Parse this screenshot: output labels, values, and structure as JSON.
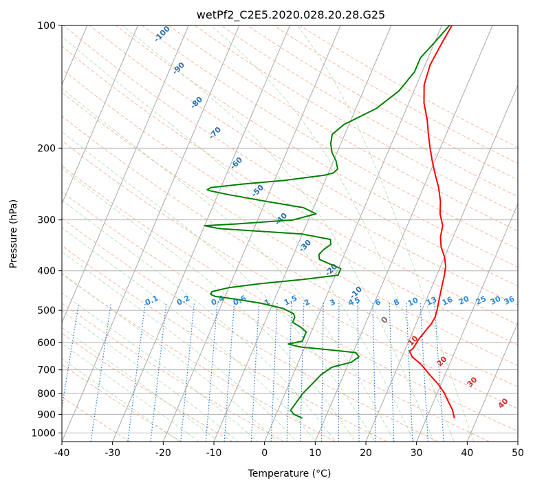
{
  "chart_data": {
    "type": "line",
    "title": "wetPf2_C2E5.2020.028.20.28.G25",
    "xlabel": "Temperature (°C)",
    "ylabel": "Pressure (hPa)",
    "xlim": [
      -40,
      50
    ],
    "ylim": [
      1050,
      100
    ],
    "y_scale": "log",
    "grid": true,
    "x_ticks": [
      "-40",
      "-30",
      "-20",
      "-10",
      "0",
      "10",
      "20",
      "30",
      "40",
      "50"
    ],
    "y_ticks": [
      "100",
      "200",
      "300",
      "400",
      "500",
      "600",
      "700",
      "800",
      "900",
      "1000"
    ],
    "series": [
      {
        "color": "#ff0000",
        "pressure": [
          100,
          110,
          125,
          140,
          155,
          170,
          185,
          200,
          215,
          230,
          250,
          270,
          290,
          310,
          330,
          350,
          370,
          390,
          410,
          440,
          470,
          500,
          520,
          540,
          560,
          590,
          620,
          630,
          650,
          680,
          720,
          760,
          800,
          840,
          880,
          900,
          920
        ],
        "temperature": [
          2,
          1.5,
          1,
          1.5,
          3,
          5,
          6.5,
          8,
          9.5,
          11,
          13,
          14.5,
          15.5,
          17,
          17.5,
          18.5,
          20,
          21,
          21.5,
          22,
          22.5,
          23,
          23.2,
          23,
          22.5,
          21.8,
          21.5,
          21,
          22,
          24.5,
          27,
          29.5,
          31.5,
          33,
          34.5,
          35,
          35.5
        ]
      },
      {
        "color": "#008000",
        "pressure": [
          100,
          110,
          120,
          130,
          145,
          160,
          175,
          185,
          195,
          205,
          215,
          225,
          230,
          233,
          240,
          245,
          250,
          253,
          255,
          260,
          270,
          280,
          290,
          300,
          307,
          310,
          315,
          325,
          335,
          345,
          355,
          365,
          375,
          385,
          395,
          410,
          420,
          430,
          440,
          450,
          457,
          462,
          468,
          480,
          495,
          510,
          520,
          535,
          550,
          565,
          580,
          595,
          605,
          615,
          625,
          635,
          650,
          670,
          690,
          720,
          760,
          800,
          840,
          880,
          900,
          920
        ],
        "temperature": [
          1.5,
          0,
          -1.5,
          -1.5,
          -3,
          -6,
          -11,
          -12.5,
          -12,
          -11,
          -9.5,
          -8.5,
          -9,
          -10.5,
          -18,
          -26,
          -32,
          -32.5,
          -31.5,
          -28,
          -20,
          -12,
          -9,
          -13,
          -24,
          -30,
          -27,
          -10,
          -4,
          -3.5,
          -4.5,
          -5,
          -4.5,
          -2,
          0.5,
          0.5,
          -6,
          -14,
          -20,
          -23,
          -23,
          -22,
          -18.5,
          -12.5,
          -7.5,
          -5,
          -4.5,
          -4.5,
          -2.5,
          -1,
          -1,
          -1,
          -3.5,
          -1,
          5,
          10.5,
          11.5,
          10.5,
          7,
          5.5,
          4.5,
          3.5,
          3,
          2.5,
          3.5,
          5.5
        ]
      }
    ],
    "background_labels": {
      "dry_adiabats": [
        "-100",
        "-90",
        "-80",
        "-70",
        "-60",
        "-50",
        "-40",
        "-30",
        "-20",
        "-10"
      ],
      "mixing_ratio": [
        "0.1",
        "0.2",
        "0.4",
        "0.6",
        "1",
        "1.5",
        "2",
        "3",
        "4",
        "5",
        "6",
        "8",
        "10",
        "13",
        "16",
        "20",
        "25",
        "30",
        "36"
      ],
      "lcl_marker": "0",
      "moist_adiabats": [
        "10",
        "20",
        "30",
        "40"
      ]
    }
  }
}
